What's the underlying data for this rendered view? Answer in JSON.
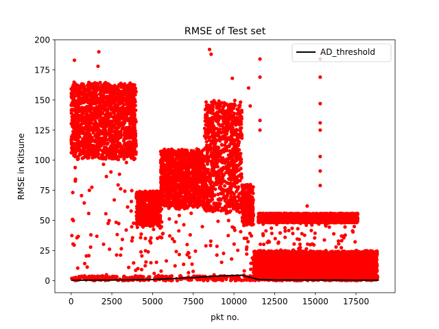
{
  "chart_data": {
    "type": "scatter",
    "title": "RMSE of Test set",
    "xlabel": "pkt no.",
    "ylabel": "RMSE in Kitsune",
    "xlim": [
      -1000,
      19900
    ],
    "ylim": [
      -10,
      200
    ],
    "xticks": [
      0,
      2500,
      5000,
      7500,
      10000,
      12500,
      15000,
      17500
    ],
    "yticks": [
      0,
      25,
      50,
      75,
      100,
      125,
      150,
      175,
      200
    ],
    "x_tick_labels": [
      "0",
      "2500",
      "5000",
      "7500",
      "10000",
      "12500",
      "15000",
      "17500"
    ],
    "y_tick_labels": [
      "0",
      "25",
      "50",
      "75",
      "100",
      "125",
      "150",
      "175",
      "200"
    ],
    "legend": {
      "position": "top-right",
      "entries": [
        {
          "label": "AD_threshold",
          "color": "#000000",
          "style": "line"
        }
      ]
    },
    "series": [
      {
        "name": "RMSE",
        "kind": "scatter",
        "color": "#ff0000",
        "n_points": 18900,
        "segments": [
          {
            "x": [
              0,
              4000
            ],
            "band": [
              100,
              165
            ],
            "outliers": [
              [
                200,
                183
              ],
              [
                1700,
                190
              ],
              [
                1650,
                178
              ]
            ]
          },
          {
            "x": [
              4000,
              5500
            ],
            "band": [
              45,
              75
            ]
          },
          {
            "x": [
              5500,
              8200
            ],
            "band": [
              60,
              110
            ]
          },
          {
            "x": [
              8200,
              10500
            ],
            "band": [
              55,
              150
            ],
            "outliers": [
              [
                8500,
                192
              ],
              [
                8600,
                188
              ],
              [
                9900,
                168
              ]
            ]
          },
          {
            "x": [
              10500,
              11200
            ],
            "band": [
              45,
              80
            ],
            "outliers": [
              [
                10900,
                160
              ],
              [
                11000,
                145
              ]
            ]
          },
          {
            "x": [
              11200,
              18800
            ],
            "band": [
              0,
              25
            ]
          },
          {
            "x": [
              11500,
              17600
            ],
            "band": [
              48,
              56
            ]
          }
        ],
        "highlight_points": [
          [
            11600,
            184
          ],
          [
            11600,
            169
          ],
          [
            11600,
            133
          ],
          [
            11600,
            125
          ],
          [
            15300,
            184
          ],
          [
            15300,
            169
          ],
          [
            15300,
            147
          ],
          [
            15300,
            131
          ],
          [
            15300,
            125
          ],
          [
            15300,
            103
          ],
          [
            15300,
            91
          ],
          [
            15300,
            79
          ],
          [
            14500,
            62
          ]
        ]
      },
      {
        "name": "AD_threshold",
        "kind": "line",
        "color": "#000000",
        "x": [
          0,
          2500,
          5000,
          7500,
          9000,
          10500,
          11500,
          12500,
          15000,
          17500,
          18900
        ],
        "values": [
          0.3,
          0.5,
          1.0,
          2.5,
          3.8,
          4.5,
          1.0,
          0.6,
          0.5,
          0.4,
          0.4
        ]
      }
    ]
  }
}
